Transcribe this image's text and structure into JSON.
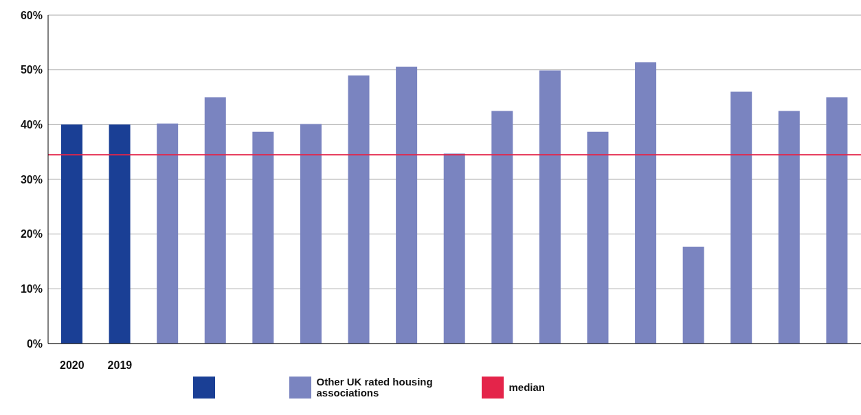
{
  "chart_data": {
    "type": "bar",
    "categories": [
      "2020",
      "2019",
      null,
      null,
      null,
      null,
      null,
      null,
      null,
      null,
      null,
      null,
      null,
      null,
      null,
      null,
      null
    ],
    "series": [
      {
        "color": "#1a3f95",
        "values": [
          40,
          40,
          null,
          null,
          null,
          null,
          null,
          null,
          null,
          null,
          null,
          null,
          null,
          null,
          null,
          null,
          null
        ]
      },
      {
        "name": "Other UK rated housing associations",
        "color": "#7a84c0",
        "values": [
          null,
          null,
          40.2,
          45,
          38.7,
          40.1,
          49,
          50.6,
          34.7,
          42.5,
          49.9,
          38.7,
          51.4,
          17.7,
          46,
          42.5,
          45
        ]
      }
    ],
    "ylim": [
      0,
      60
    ],
    "yticks": [
      {
        "value": 0,
        "label": "0%"
      },
      {
        "value": 10,
        "label": "10%"
      },
      {
        "value": 20,
        "label": "20%"
      },
      {
        "value": 30,
        "label": "30%"
      },
      {
        "value": 40,
        "label": "40%"
      },
      {
        "value": 50,
        "label": "50%"
      },
      {
        "value": 60,
        "label": "60%"
      }
    ],
    "grid": "y",
    "ref_lines": [
      {
        "axis": "y",
        "value": 34.5,
        "label": "median",
        "color": "#e4244a"
      }
    ],
    "legend": "bottom"
  }
}
